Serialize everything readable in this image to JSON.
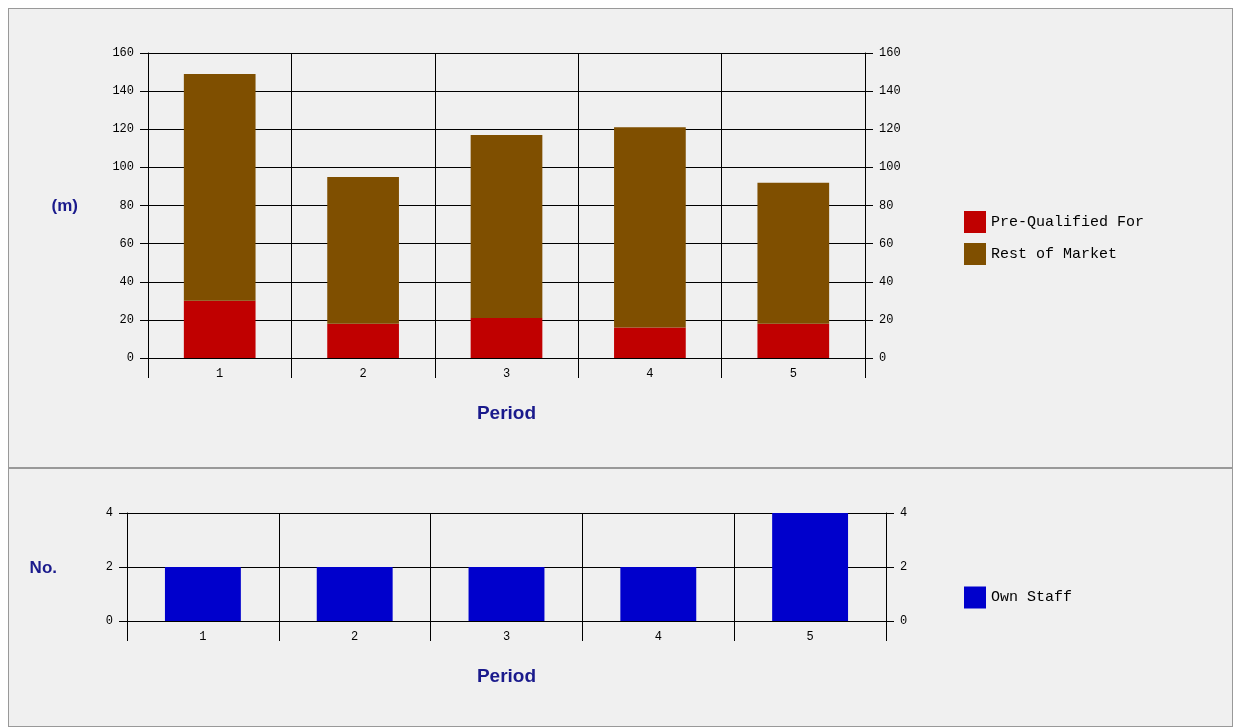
{
  "chart_data": [
    {
      "type": "bar",
      "stacked": true,
      "categories": [
        "1",
        "2",
        "3",
        "4",
        "5"
      ],
      "xlabel": "Period",
      "ylabel": "(m)",
      "series": [
        {
          "name": "Pre-Qualified For",
          "color": "#c00000",
          "values": [
            30,
            18,
            21,
            16,
            18
          ]
        },
        {
          "name": "Rest of Market",
          "color": "#7f4f00",
          "values": [
            119,
            77,
            96,
            105,
            74
          ]
        }
      ],
      "ylim": [
        0,
        160
      ],
      "yticks": [
        0,
        20,
        40,
        60,
        80,
        100,
        120,
        140,
        160
      ],
      "y2lim": [
        0,
        160
      ],
      "y2ticks": [
        0,
        20,
        40,
        60,
        80,
        100,
        120,
        140,
        160
      ],
      "grid": true,
      "legend": "right"
    },
    {
      "type": "bar",
      "categories": [
        "1",
        "2",
        "3",
        "4",
        "5"
      ],
      "xlabel": "Period",
      "ylabel": "No.",
      "series": [
        {
          "name": "Own Staff",
          "color": "#0000cc",
          "values": [
            2,
            2,
            2,
            2,
            4
          ]
        }
      ],
      "ylim": [
        0,
        4
      ],
      "yticks": [
        0,
        2,
        4
      ],
      "y2lim": [
        0,
        4
      ],
      "y2ticks": [
        0,
        2,
        4
      ],
      "grid": true,
      "legend": "right"
    }
  ]
}
